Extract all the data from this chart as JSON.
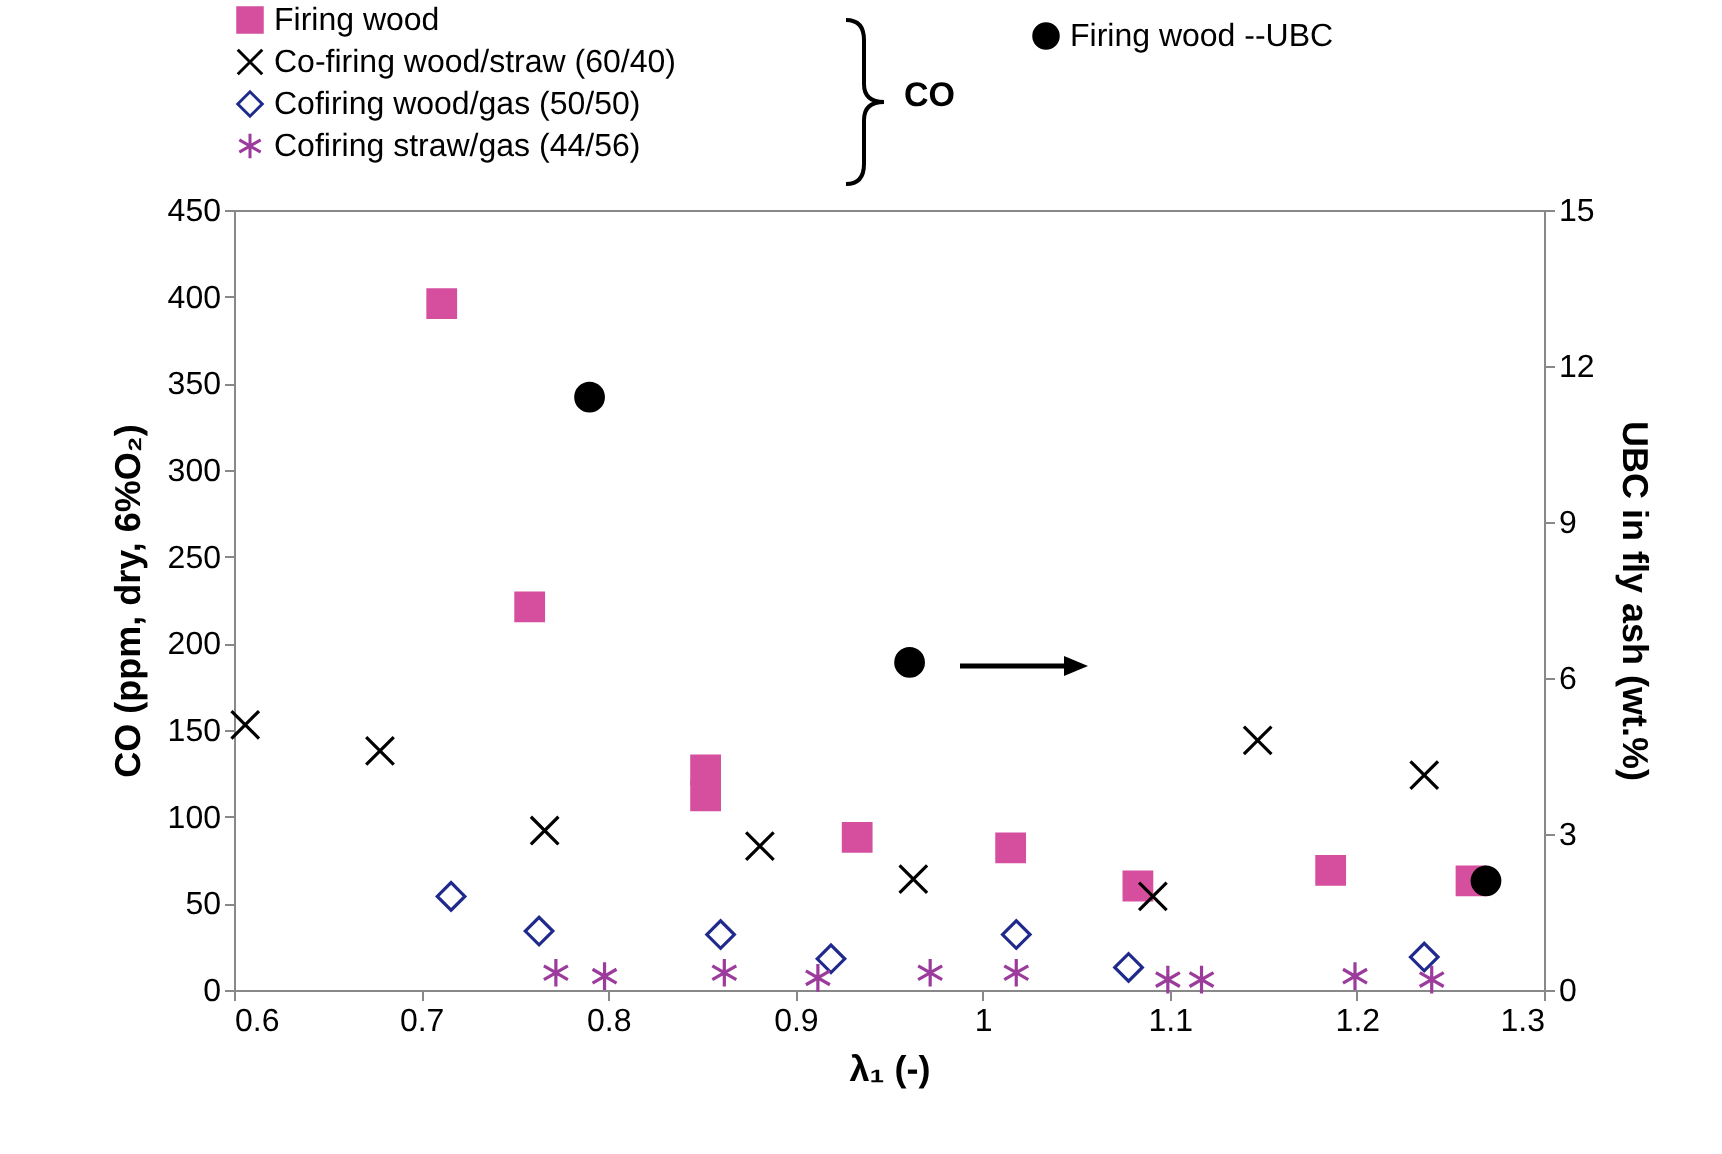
{
  "chart_data": {
    "type": "scatter",
    "xlabel": "λ₁ (-)",
    "ylabel": "CO (ppm, dry, 6%O₂)",
    "y2label": "UBC in fly ash (wt.%)",
    "xlim": [
      0.6,
      1.3
    ],
    "xticks": [
      0.6,
      0.7,
      0.8,
      0.9,
      1,
      1.1,
      1.2,
      1.3
    ],
    "ylim": [
      0,
      450
    ],
    "yticks": [
      0,
      50,
      100,
      150,
      200,
      250,
      300,
      350,
      400,
      450
    ],
    "y2lim": [
      0,
      15
    ],
    "y2ticks": [
      0,
      3,
      6,
      9,
      12,
      15
    ],
    "legend": "top left",
    "annotations": [
      "CO"
    ],
    "series": [
      {
        "name": "Firing wood",
        "color": "#d64f9e",
        "marker": "square",
        "x": [
          0.711,
          0.758,
          0.852,
          0.852,
          0.933,
          1.015,
          1.083,
          1.186,
          1.261
        ],
        "values": [
          396,
          221,
          127,
          112,
          88,
          82,
          60,
          69,
          63
        ]
      },
      {
        "name": "Co-firing wood/straw (60/40)",
        "color": "#000000",
        "marker": "cross",
        "x": [
          0.606,
          0.678,
          0.766,
          0.881,
          0.963,
          1.091,
          1.147,
          1.236
        ],
        "values": [
          153,
          138,
          92,
          83,
          64,
          54,
          144,
          124
        ]
      },
      {
        "name": "Cofiring wood/gas (50/50)",
        "color": "#1f2a8c",
        "marker": "diamond",
        "x": [
          0.716,
          0.763,
          0.86,
          0.919,
          1.018,
          1.078,
          1.236
        ],
        "values": [
          54,
          34,
          32,
          18,
          32,
          13,
          19
        ]
      },
      {
        "name": "Cofiring straw/gas (44/56)",
        "color": "#9b3b9b",
        "x": [
          0.772,
          0.798,
          0.862,
          0.912,
          0.972,
          1.018,
          1.099,
          1.117,
          1.199,
          1.24
        ],
        "values": [
          10,
          8,
          10,
          7,
          10,
          10,
          6,
          6,
          8,
          6
        ]
      },
      {
        "name": "Firing wood --UBC",
        "color": "#000000",
        "marker": "circle",
        "axis": "y2",
        "x": [
          0.79,
          0.961,
          1.269
        ],
        "values": [
          11.4,
          6.3,
          2.1
        ]
      }
    ]
  }
}
